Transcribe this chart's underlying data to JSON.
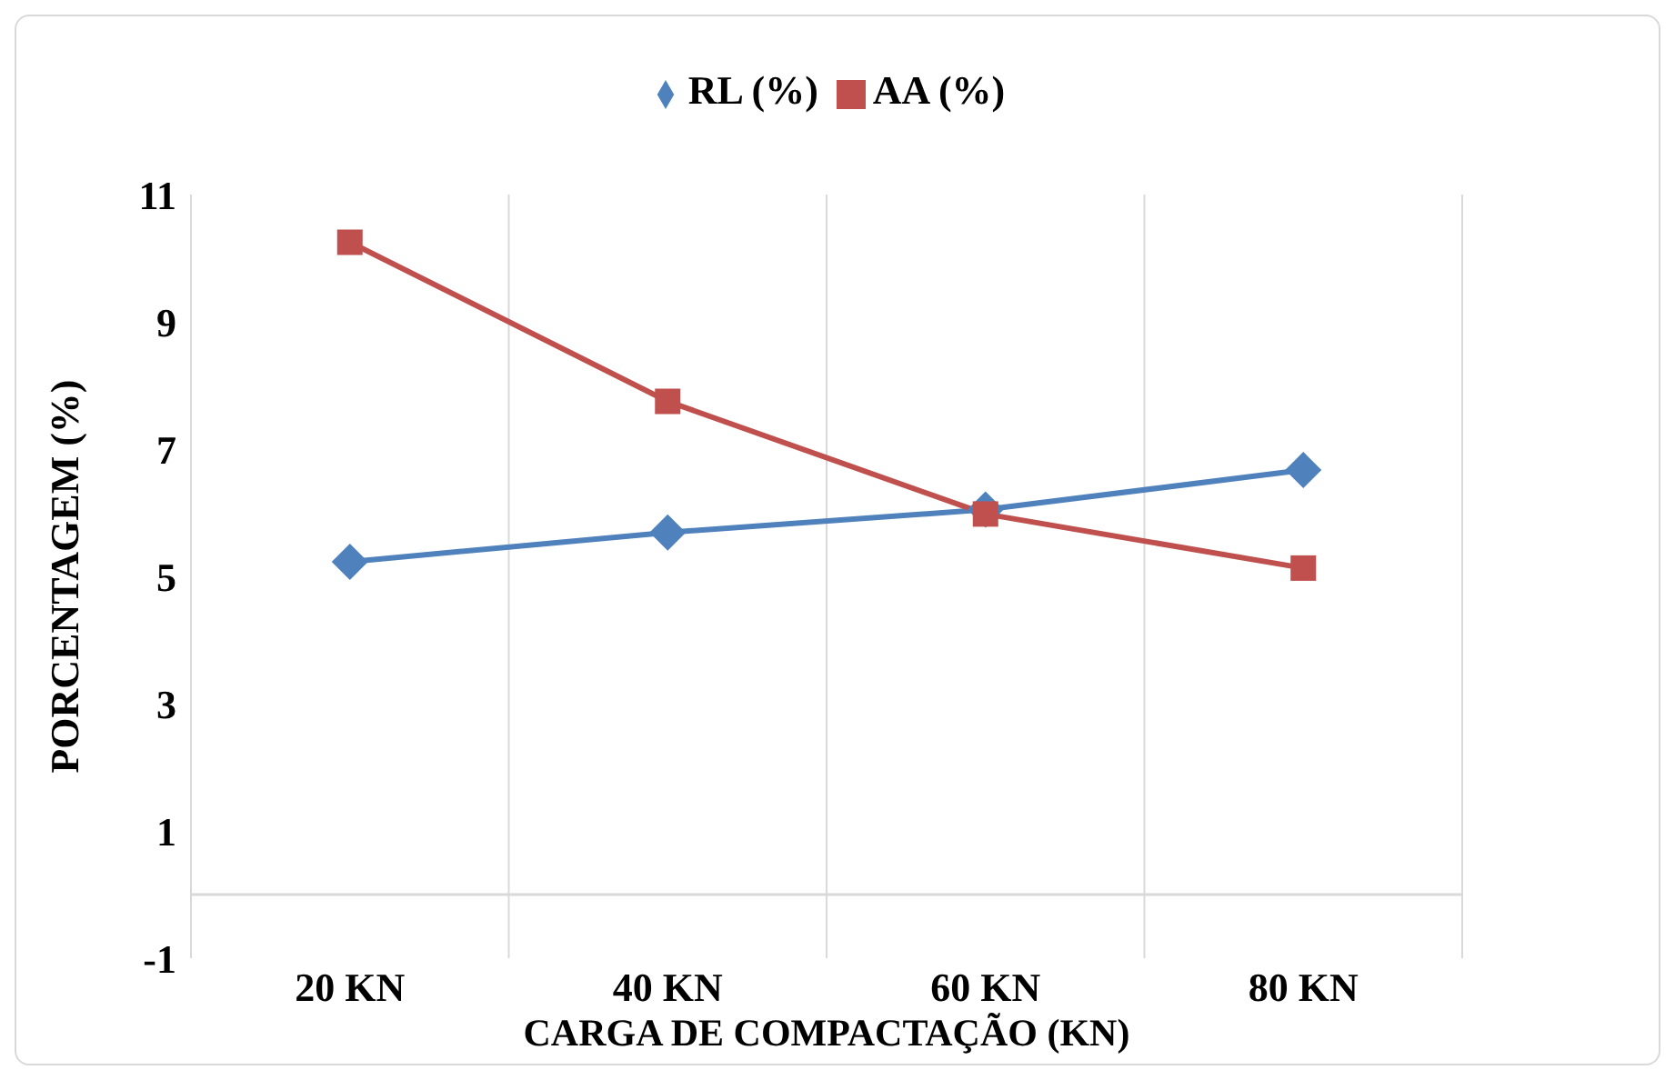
{
  "chart_data": {
    "type": "line",
    "xlabel": "CARGA DE COMPACTAÇÃO (KN)",
    "ylabel": "PORCENTAGEM (%)",
    "categories": [
      "20  KN",
      "40  KN",
      "60  KN",
      "80  KN"
    ],
    "series": [
      {
        "name": "RL (%)",
        "color": "#4f81bd",
        "marker": "diamond",
        "values": [
          5.23,
          5.69,
          6.05,
          6.67
        ]
      },
      {
        "name": "AA (%)",
        "color": "#c0504d",
        "marker": "square",
        "values": [
          10.25,
          7.75,
          5.98,
          5.13
        ]
      }
    ],
    "ylim": [
      -1,
      11
    ],
    "yticks": [
      -1,
      1,
      3,
      5,
      7,
      9,
      11
    ],
    "grid": "x",
    "legend": "top",
    "line_style": "solid"
  }
}
